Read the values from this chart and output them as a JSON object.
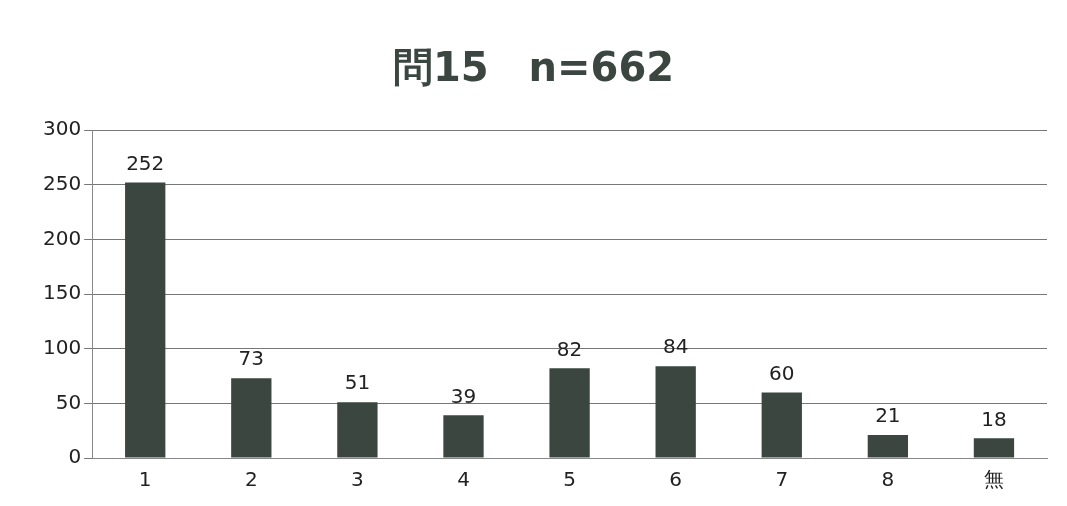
{
  "chart_data": {
    "type": "bar",
    "title": "問15　n=662",
    "categories": [
      "1",
      "2",
      "3",
      "4",
      "5",
      "6",
      "7",
      "8",
      "無"
    ],
    "values": [
      252,
      73,
      51,
      39,
      82,
      84,
      60,
      21,
      18
    ],
    "color": "#3b4641",
    "ylim": [
      0,
      300
    ],
    "yticks": [
      0,
      50,
      100,
      150,
      200,
      250,
      300
    ],
    "grid": "y",
    "data_labels": true,
    "legend": false
  }
}
